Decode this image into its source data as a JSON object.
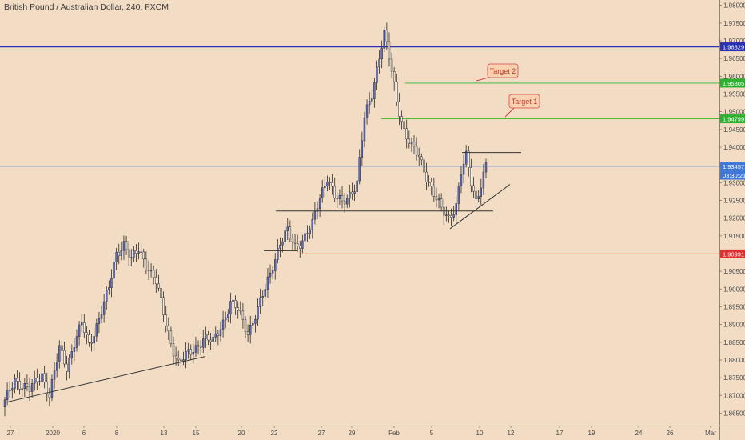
{
  "header": {
    "title": "British Pound / Australian Dollar, 240, FXCM"
  },
  "chart_data": {
    "type": "candlestick",
    "symbol": "British Pound / Australian Dollar",
    "interval": "240",
    "source": "FXCM",
    "ylim": [
      1.8615,
      1.9815
    ],
    "y_ticks": [
      "1.86500",
      "1.87000",
      "1.87500",
      "1.88000",
      "1.88500",
      "1.89000",
      "1.89500",
      "1.90000",
      "1.90500",
      "1.91000",
      "1.91500",
      "1.92000",
      "1.92500",
      "1.93000",
      "1.93500",
      "1.94000",
      "1.94500",
      "1.95000",
      "1.95500",
      "1.96000",
      "1.96500",
      "1.97000",
      "1.97500",
      "1.98000"
    ],
    "x_labels": [
      "27",
      "2020",
      "6",
      "8",
      "13",
      "15",
      "20",
      "22",
      "27",
      "29",
      "Feb",
      "5",
      "10",
      "12",
      "17",
      "19",
      "24",
      "26",
      "Mar"
    ],
    "anchors": [
      {
        "i": 0,
        "p": 1.868
      },
      {
        "i": 4,
        "p": 1.8745
      },
      {
        "i": 10,
        "p": 1.8715
      },
      {
        "i": 15,
        "p": 1.876
      },
      {
        "i": 18,
        "p": 1.87
      },
      {
        "i": 22,
        "p": 1.883
      },
      {
        "i": 25,
        "p": 1.878
      },
      {
        "i": 28,
        "p": 1.885
      },
      {
        "i": 31,
        "p": 1.89
      },
      {
        "i": 34,
        "p": 1.884
      },
      {
        "i": 38,
        "p": 1.892
      },
      {
        "i": 42,
        "p": 1.9
      },
      {
        "i": 45,
        "p": 1.91
      },
      {
        "i": 48,
        "p": 1.913
      },
      {
        "i": 51,
        "p": 1.908
      },
      {
        "i": 54,
        "p": 1.911
      },
      {
        "i": 58,
        "p": 1.906
      },
      {
        "i": 61,
        "p": 1.902
      },
      {
        "i": 64,
        "p": 1.893
      },
      {
        "i": 67,
        "p": 1.885
      },
      {
        "i": 70,
        "p": 1.879
      },
      {
        "i": 73,
        "p": 1.881
      },
      {
        "i": 76,
        "p": 1.883
      },
      {
        "i": 80,
        "p": 1.886
      },
      {
        "i": 84,
        "p": 1.885
      },
      {
        "i": 88,
        "p": 1.891
      },
      {
        "i": 91,
        "p": 1.896
      },
      {
        "i": 94,
        "p": 1.894
      },
      {
        "i": 98,
        "p": 1.888
      },
      {
        "i": 102,
        "p": 1.894
      },
      {
        "i": 105,
        "p": 1.9
      },
      {
        "i": 108,
        "p": 1.907
      },
      {
        "i": 111,
        "p": 1.913
      },
      {
        "i": 114,
        "p": 1.916
      },
      {
        "i": 117,
        "p": 1.912
      },
      {
        "i": 120,
        "p": 1.914
      },
      {
        "i": 124,
        "p": 1.918
      },
      {
        "i": 127,
        "p": 1.926
      },
      {
        "i": 130,
        "p": 1.932
      },
      {
        "i": 133,
        "p": 1.926
      },
      {
        "i": 136,
        "p": 1.924
      },
      {
        "i": 139,
        "p": 1.927
      },
      {
        "i": 142,
        "p": 1.93
      },
      {
        "i": 145,
        "p": 1.948
      },
      {
        "i": 148,
        "p": 1.955
      },
      {
        "i": 151,
        "p": 1.966
      },
      {
        "i": 153,
        "p": 1.972
      },
      {
        "i": 155,
        "p": 1.965
      },
      {
        "i": 158,
        "p": 1.953
      },
      {
        "i": 161,
        "p": 1.945
      },
      {
        "i": 164,
        "p": 1.94
      },
      {
        "i": 167,
        "p": 1.937
      },
      {
        "i": 170,
        "p": 1.932
      },
      {
        "i": 173,
        "p": 1.927
      },
      {
        "i": 176,
        "p": 1.922
      },
      {
        "i": 179,
        "p": 1.92
      },
      {
        "i": 182,
        "p": 1.924
      },
      {
        "i": 184,
        "p": 1.933
      },
      {
        "i": 186,
        "p": 1.937
      },
      {
        "i": 188,
        "p": 1.93
      },
      {
        "i": 190,
        "p": 1.925
      },
      {
        "i": 192,
        "p": 1.93
      },
      {
        "i": 194,
        "p": 1.935
      }
    ],
    "price_lines": [
      {
        "label": "1.96829",
        "price": 1.96829,
        "color": "#2b32b2",
        "width": 1.3,
        "tag_bg": "#2b32b2"
      },
      {
        "label": "1.95805",
        "price": 1.95805,
        "color": "#33b533",
        "width": 0.9,
        "tag_bg": "#2fb02f",
        "x_from_pct": 0.563
      },
      {
        "label": "1.94799",
        "price": 1.94799,
        "color": "#33b533",
        "width": 0.9,
        "tag_bg": "#2fb02f",
        "x_from_pct": 0.53
      },
      {
        "label": "1.93457",
        "price": 1.93457,
        "color": "#8fa8d8",
        "width": 0.8,
        "tag_bg": "#3f78d6"
      },
      {
        "label": "1.90991",
        "price": 1.90991,
        "color": "#e23b3b",
        "width": 0.9,
        "tag_bg": "#e03030",
        "x_from_pct": 0.42
      }
    ],
    "countdown": "03:30:21",
    "annotations": [
      {
        "text": "Target 2",
        "price": 1.9605,
        "arrow_to_price": 1.958
      },
      {
        "text": "Target 1",
        "price": 1.9525,
        "arrow_to_price": 1.948
      }
    ],
    "colors": {
      "background": "#f2dcc4",
      "up_candle": "#5b6fd6",
      "down_candle": "#f4efe6",
      "wick": "#2b2b2b",
      "trendline": "#333333"
    }
  }
}
